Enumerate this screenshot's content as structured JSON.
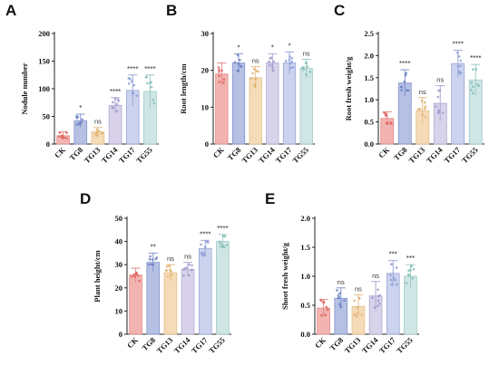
{
  "colors": {
    "fills": [
      "#f2b4b0",
      "#b5c0e3",
      "#f5dbb7",
      "#d8d3ea",
      "#ccd3ee",
      "#cfe6e5"
    ],
    "strokes": [
      "#e08a86",
      "#8394cc",
      "#e5bf8b",
      "#b0a8d1",
      "#9aa6d8",
      "#9ccac6"
    ],
    "dots": [
      "#e0605b",
      "#6a7fc6",
      "#e0b06e",
      "#a298cc",
      "#8a9ad6",
      "#86bdb8"
    ]
  },
  "chart_data": [
    {
      "panel": "A",
      "type": "bar",
      "categories": [
        "CK",
        "TG8",
        "TG13",
        "TG14",
        "TG17",
        "TG55"
      ],
      "values": [
        15,
        42,
        22,
        70,
        97,
        95
      ],
      "errors": [
        7,
        12,
        8,
        14,
        28,
        30
      ],
      "significance": [
        "",
        "*",
        "ns",
        "****",
        "****",
        "****"
      ],
      "ylabel": "Nodule number",
      "ylim": [
        0,
        200
      ],
      "yticks": [
        "0",
        "50",
        "100",
        "150",
        "200"
      ]
    },
    {
      "panel": "B",
      "type": "bar",
      "categories": [
        "CK",
        "TG8",
        "TG13",
        "TG14",
        "TG17",
        "TG55"
      ],
      "values": [
        19,
        22,
        18,
        22,
        22,
        20.5
      ],
      "errors": [
        3,
        2.5,
        3,
        2.5,
        3,
        2.5
      ],
      "significance": [
        "",
        "*",
        "ns",
        "*",
        "*",
        "ns"
      ],
      "ylabel": "Root length/cm",
      "ylim": [
        0,
        30
      ],
      "yticks": [
        "0",
        "10",
        "20",
        "30"
      ]
    },
    {
      "panel": "C",
      "type": "bar",
      "categories": [
        "CK",
        "TG8",
        "TG13",
        "TG14",
        "TG17",
        "TG55"
      ],
      "values": [
        0.58,
        1.38,
        0.75,
        0.92,
        1.82,
        1.45
      ],
      "errors": [
        0.15,
        0.3,
        0.3,
        0.4,
        0.3,
        0.35
      ],
      "significance": [
        "",
        "****",
        "ns",
        "ns",
        "****",
        "****"
      ],
      "ylabel": "Root fresh weight/g",
      "ylim": [
        0,
        2.5
      ],
      "yticks": [
        "0.0",
        "0.5",
        "1.0",
        "1.5",
        "2.0",
        "2.5"
      ]
    },
    {
      "panel": "D",
      "type": "bar",
      "categories": [
        "CK",
        "TG8",
        "TG13",
        "TG14",
        "TG17",
        "TG55"
      ],
      "values": [
        25.5,
        31,
        26.5,
        28,
        37,
        40
      ],
      "errors": [
        3,
        4,
        3.5,
        3,
        3.5,
        3
      ],
      "significance": [
        "",
        "**",
        "ns",
        "ns",
        "****",
        "****"
      ],
      "ylabel": "Plant height/cm",
      "ylim": [
        0,
        50
      ],
      "yticks": [
        "0",
        "10",
        "20",
        "30",
        "40",
        "50"
      ]
    },
    {
      "panel": "E",
      "type": "bar",
      "categories": [
        "CK",
        "TG8",
        "TG13",
        "TG14",
        "TG17",
        "TG55"
      ],
      "values": [
        0.45,
        0.62,
        0.48,
        0.66,
        1.05,
        1.0
      ],
      "errors": [
        0.15,
        0.18,
        0.2,
        0.25,
        0.22,
        0.2
      ],
      "significance": [
        "",
        "ns",
        "ns",
        "ns",
        "***",
        "***"
      ],
      "ylabel": "Shoot fresh weight/g",
      "ylim": [
        0,
        2.0
      ],
      "yticks": [
        "0.0",
        "0.5",
        "1.0",
        "1.5",
        "2.0"
      ]
    }
  ]
}
